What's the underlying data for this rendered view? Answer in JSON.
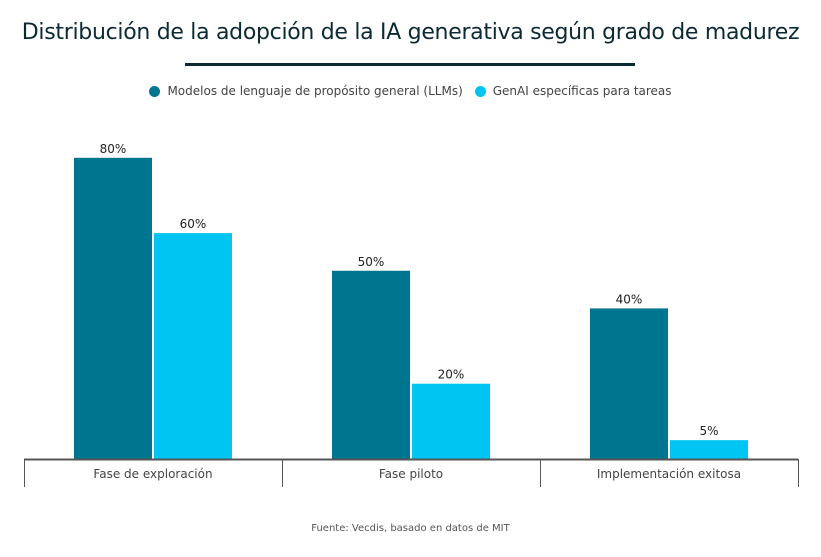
{
  "chart_data": {
    "type": "bar",
    "title": "Distribución de la adopción de la IA generativa según grado de madurez",
    "categories": [
      "Fase de exploración",
      "Fase piloto",
      "Implementación exitosa"
    ],
    "series": [
      {
        "name": "Modelos de lenguaje de propósito general (LLMs)",
        "values": [
          80,
          50,
          40
        ],
        "color": "#00758f"
      },
      {
        "name": "GenAI específicas para tareas",
        "values": [
          60,
          20,
          5
        ],
        "color": "#00c5f2"
      }
    ],
    "value_suffix": "%",
    "xlabel": "",
    "ylabel": "",
    "ylim": [
      0,
      80
    ],
    "grid": false,
    "legend": "top-center",
    "source": "Fuente: Vecdis, basado en datos de MIT"
  }
}
